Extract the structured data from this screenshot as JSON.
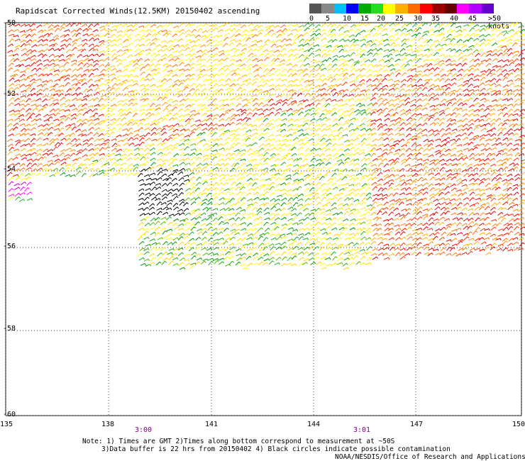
{
  "title": "Rapidscat Corrected Winds(12.5KM) 20150402 ascending",
  "colorbar": {
    "colors": [
      "#555555",
      "#888888",
      "#00bfff",
      "#0000ff",
      "#00aa00",
      "#22dd22",
      "#ffff00",
      "#ffb000",
      "#ff6a00",
      "#ff0000",
      "#990000",
      "#660000",
      "#ff00ff",
      "#b000ff",
      "#6600cc"
    ],
    "labels": [
      "0",
      "5",
      "10",
      "15",
      "20",
      "25",
      "30",
      "35",
      "40",
      "45",
      ">50 knots"
    ]
  },
  "axes": {
    "lat_labels": [
      "-50",
      "-52",
      "-54",
      "-56",
      "-58",
      "-60"
    ],
    "lon_labels": [
      "135",
      "138",
      "141",
      "144",
      "147",
      "150"
    ]
  },
  "times": [
    "3:00",
    "3:01"
  ],
  "notes": {
    "line1": "Note: 1) Times are GMT 2)Times along bottom correspond to measurement at ~50S",
    "line2": "3)Data buffer is 22 hrs from 20150402 4) Black circles indicate possible contamination",
    "line3": "NOAA/NESDIS/Office of Research and Applications"
  }
}
